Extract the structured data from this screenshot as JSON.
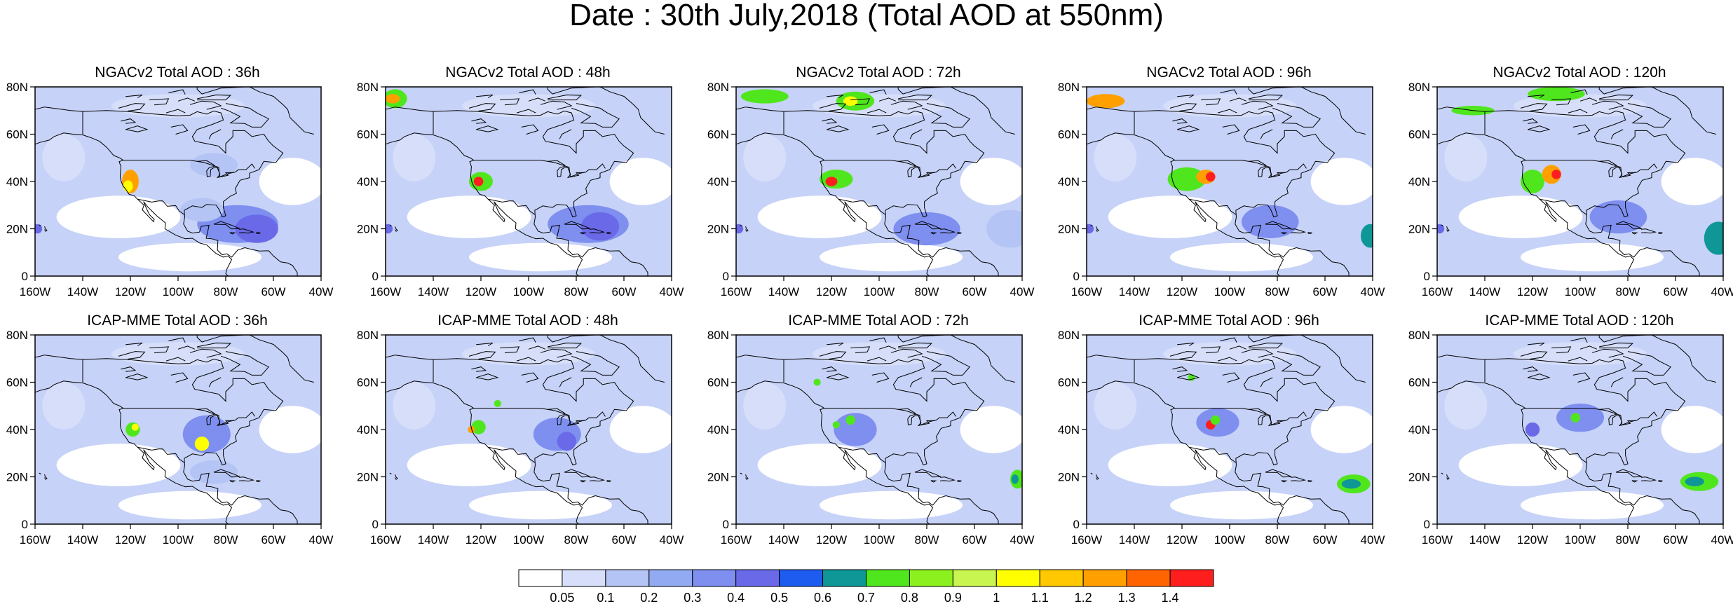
{
  "title": "Date : 30th July,2018 (Total AOD at 550nm)",
  "rows": [
    {
      "model": "NGACv2",
      "panels": [
        {
          "title": "NGACv2 Total AOD : 36h",
          "lead_hours": 36
        },
        {
          "title": "NGACv2 Total AOD : 48h",
          "lead_hours": 48
        },
        {
          "title": "NGACv2 Total AOD : 72h",
          "lead_hours": 72
        },
        {
          "title": "NGACv2 Total AOD : 96h",
          "lead_hours": 96
        },
        {
          "title": "NGACv2 Total AOD : 120h",
          "lead_hours": 120
        }
      ]
    },
    {
      "model": "ICAP-MME",
      "panels": [
        {
          "title": "ICAP-MME Total AOD : 36h",
          "lead_hours": 36
        },
        {
          "title": "ICAP-MME Total AOD : 48h",
          "lead_hours": 48
        },
        {
          "title": "ICAP-MME Total AOD : 72h",
          "lead_hours": 72
        },
        {
          "title": "ICAP-MME Total AOD : 96h",
          "lead_hours": 96
        },
        {
          "title": "ICAP-MME Total AOD : 120h",
          "lead_hours": 120
        }
      ]
    }
  ],
  "axes": {
    "lon_ticks": [
      "160W",
      "140W",
      "120W",
      "100W",
      "80W",
      "60W",
      "40W"
    ],
    "lat_ticks": [
      "0",
      "20N",
      "40N",
      "60N",
      "80N"
    ],
    "lon_range": [
      -160,
      -40
    ],
    "lat_range": [
      0,
      80
    ]
  },
  "colorbar": {
    "labels": [
      "0.05",
      "0.1",
      "0.2",
      "0.3",
      "0.4",
      "0.5",
      "0.6",
      "0.7",
      "0.8",
      "0.9",
      "1",
      "1.1",
      "1.2",
      "1.3",
      "1.4"
    ],
    "colors": [
      "#ffffff",
      "#d6defa",
      "#b4c4f4",
      "#92aaf2",
      "#7e8ff0",
      "#6a6ae8",
      "#1e5cf0",
      "#0f9696",
      "#50e61e",
      "#8cf01e",
      "#c8f550",
      "#ffff00",
      "#ffc800",
      "#ffa000",
      "#ff6400",
      "#ff1e1e"
    ]
  },
  "map_colors": {
    "background": "#c6d2f7",
    "clear": "#ffffff",
    "light": "#d6defa",
    "medium": "#b4c4f4",
    "dark": "#7e8ff0",
    "deep": "#6a6ae8",
    "green": "#50e61e",
    "yellow": "#ffff00",
    "orange": "#ffa000",
    "red": "#ff1e1e",
    "teal": "#0f9696",
    "coast": "#000000"
  }
}
